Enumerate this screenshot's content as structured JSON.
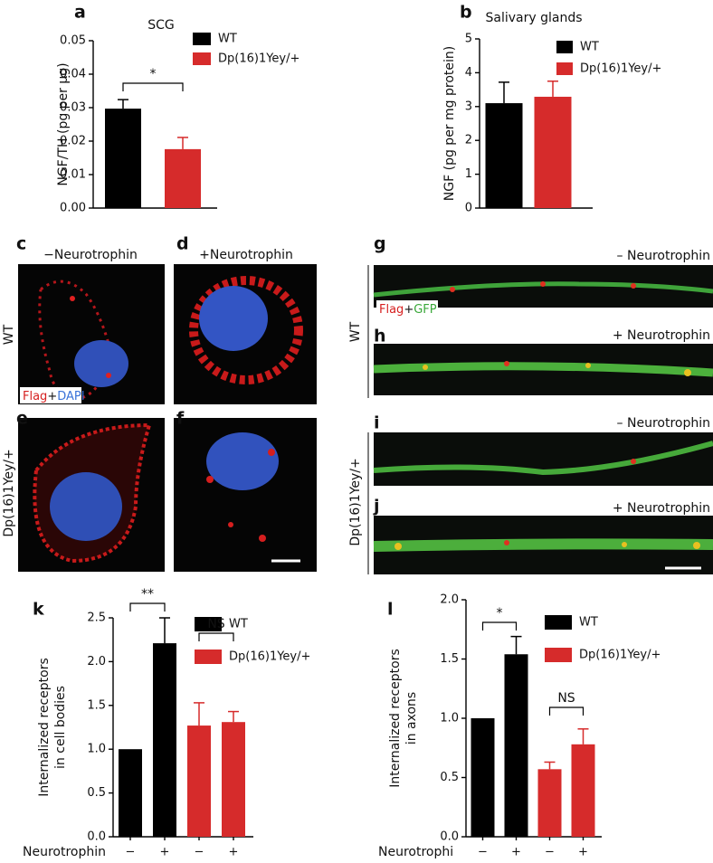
{
  "chart_data": [
    {
      "type": "bar",
      "panel": "a",
      "title": "SCG",
      "ylabel": [
        "NGF/TH (pg per μg)"
      ],
      "categories": [
        null
      ],
      "series": [
        {
          "name": "WT",
          "color": "#000000",
          "values": [
            0.0297
          ],
          "errors": [
            0.0027
          ]
        },
        {
          "name": "Dp(16)1Yey/+",
          "color": "#d62b2b",
          "values": [
            0.0176
          ],
          "errors": [
            0.0035
          ]
        }
      ],
      "ylim": [
        0,
        0.05
      ],
      "yticks": [
        {
          "value": 0,
          "label": "0.00"
        },
        0.01,
        0.02,
        0.03,
        0.04,
        0.05
      ],
      "annotations": [
        "*"
      ]
    },
    {
      "type": "bar",
      "panel": "b",
      "title": "Salivary glands",
      "ylabel": [
        "NGF (pg per mg protein)"
      ],
      "categories": [
        null
      ],
      "series": [
        {
          "name": "WT",
          "color": "#000000",
          "values": [
            3.1
          ],
          "errors": [
            0.62
          ]
        },
        {
          "name": "Dp(16)1Yey/+",
          "color": "#d62b2b",
          "values": [
            3.29
          ],
          "errors": [
            0.46
          ]
        }
      ],
      "ylim": [
        0,
        5
      ],
      "yticks": [
        0,
        1,
        2,
        3,
        4,
        5
      ],
      "annotations": []
    },
    {
      "type": "bar",
      "panel": "k",
      "ylabel": [
        "Internalized receptors",
        "in cell bodies"
      ],
      "xlabel": "Neurotrophin",
      "categories": [
        "−",
        "+",
        "−",
        "+"
      ],
      "series": [
        {
          "name": "WT",
          "color": "#000000",
          "values": [
            1.0,
            2.21,
            null,
            null
          ],
          "errors": [
            null,
            0.29,
            null,
            null
          ]
        },
        {
          "name": "Dp(16)1Yey/+",
          "color": "#d62b2b",
          "values": [
            null,
            null,
            1.27,
            1.31
          ],
          "errors": [
            null,
            null,
            0.26,
            0.12
          ]
        }
      ],
      "ylim": [
        0,
        2.5
      ],
      "yticks": [
        {
          "value": 0,
          "label": "0.0"
        },
        0.5,
        {
          "value": 1,
          "label": "1.0"
        },
        1.5,
        {
          "value": 2,
          "label": "2.0"
        },
        2.5
      ],
      "annotations": [
        "**",
        "NS"
      ]
    },
    {
      "type": "bar",
      "panel": "l",
      "ylabel": [
        "Internalized receptors",
        "in axons"
      ],
      "xlabel": "Neurotrophi",
      "categories": [
        "−",
        "+",
        "−",
        "+"
      ],
      "series": [
        {
          "name": "WT",
          "color": "#000000",
          "values": [
            1.0,
            1.54,
            null,
            null
          ],
          "errors": [
            null,
            0.15,
            null,
            null
          ]
        },
        {
          "name": "Dp(16)1Yey/+",
          "color": "#d62b2b",
          "values": [
            null,
            null,
            0.57,
            0.78
          ],
          "errors": [
            null,
            null,
            0.06,
            0.13
          ]
        }
      ],
      "ylim": [
        0,
        2.0
      ],
      "yticks": [
        {
          "value": 0,
          "label": "0.0"
        },
        0.5,
        {
          "value": 1,
          "label": "1.0"
        },
        1.5,
        {
          "value": 2,
          "label": "2.0"
        }
      ],
      "annotations": [
        "*",
        "NS"
      ]
    }
  ],
  "micrographs": {
    "letters": [
      "c",
      "d",
      "e",
      "f",
      "g",
      "h",
      "i",
      "j"
    ],
    "column_labels": [
      "−Neurotrophin",
      "+Neurotrophin"
    ],
    "row_labels": [
      "WT",
      "Dp(16)1Yey/+"
    ],
    "stain_left": [
      "Flag",
      "+",
      "DAPI"
    ],
    "axon_labels": [
      "– Neurotrophin",
      "+ Neurotrophin",
      "– Neurotrophin",
      "+ Neurotrophin"
    ],
    "axon_row_labels": [
      "WT",
      "Dp(16)1Yey/+"
    ],
    "stain_right": [
      "Flag",
      "+",
      "GFP"
    ]
  }
}
